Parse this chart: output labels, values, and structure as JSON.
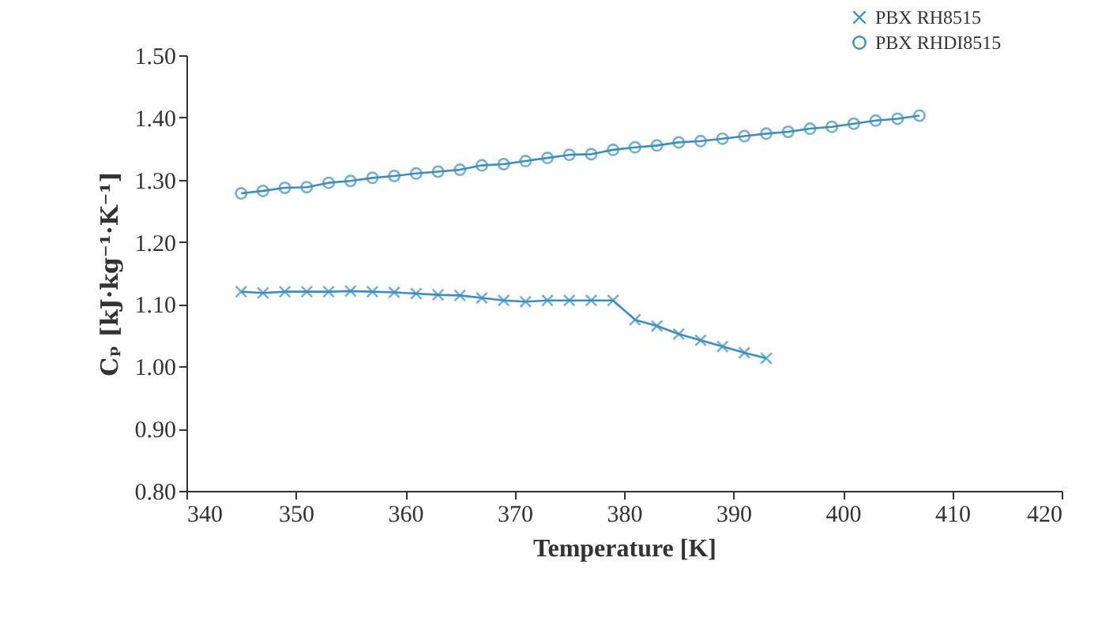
{
  "chart_data": {
    "type": "line",
    "xlabel": "Temperature [K]",
    "ylabel": "Cₚ [kJ·kg⁻¹·K⁻¹]",
    "xlim": [
      340,
      420
    ],
    "xticks": [
      340,
      350,
      360,
      370,
      380,
      390,
      400,
      410,
      420
    ],
    "ylim": [
      0.8,
      1.5
    ],
    "yticks": [
      {
        "value": 0.8,
        "label": "0.80"
      },
      {
        "value": 0.9,
        "label": "0.90"
      },
      {
        "value": 1.0,
        "label": "1.00"
      },
      {
        "value": 1.1,
        "label": "1.10"
      },
      {
        "value": 1.2,
        "label": "1.20"
      },
      {
        "value": 1.3,
        "label": "1.30"
      },
      {
        "value": 1.4,
        "label": "1.40"
      },
      {
        "value": 1.5,
        "label": "1.50"
      }
    ],
    "grid": false,
    "legend": "top right",
    "line_style": "solid",
    "series": [
      {
        "name": "PBX RH8515",
        "color": "#3a8fc1",
        "marker": "cross",
        "x": [
          345,
          347,
          349,
          351,
          353,
          355,
          357,
          359,
          361,
          363,
          365,
          367,
          369,
          371,
          373,
          375,
          377,
          379,
          381,
          383,
          385,
          387,
          389,
          391,
          393
        ],
        "values": [
          1.12,
          1.118,
          1.12,
          1.12,
          1.12,
          1.121,
          1.12,
          1.119,
          1.117,
          1.115,
          1.114,
          1.11,
          1.106,
          1.104,
          1.106,
          1.106,
          1.106,
          1.106,
          1.075,
          1.065,
          1.052,
          1.042,
          1.032,
          1.022,
          1.013
        ]
      },
      {
        "name": "PBX RHDI8515",
        "color": "#3a8fc1",
        "marker": "circle",
        "x": [
          345,
          347,
          349,
          351,
          353,
          355,
          357,
          359,
          361,
          363,
          365,
          367,
          369,
          371,
          373,
          375,
          377,
          379,
          381,
          383,
          385,
          387,
          389,
          391,
          393,
          395,
          397,
          399,
          401,
          403,
          405,
          407
        ],
        "values": [
          1.278,
          1.282,
          1.287,
          1.288,
          1.295,
          1.298,
          1.303,
          1.306,
          1.31,
          1.313,
          1.316,
          1.323,
          1.325,
          1.33,
          1.335,
          1.34,
          1.341,
          1.348,
          1.352,
          1.355,
          1.36,
          1.362,
          1.366,
          1.37,
          1.374,
          1.377,
          1.382,
          1.385,
          1.39,
          1.395,
          1.398,
          1.403
        ]
      }
    ]
  }
}
